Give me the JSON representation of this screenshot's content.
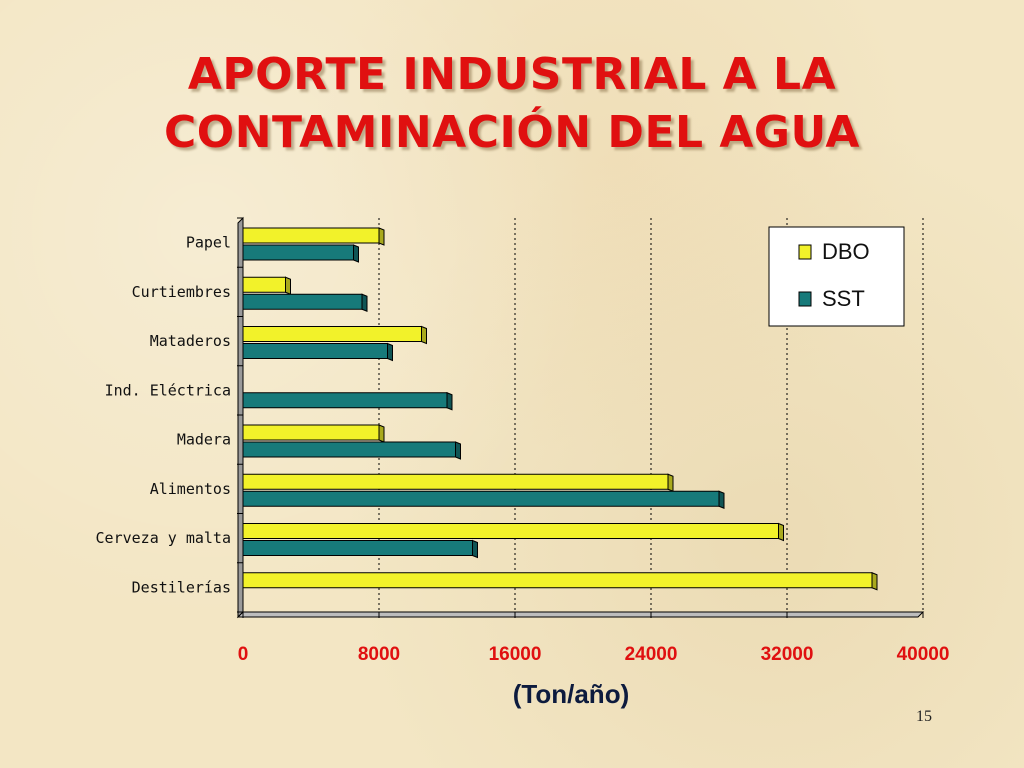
{
  "slide": {
    "title_line1": "APORTE INDUSTRIAL A LA",
    "title_line2": "CONTAMINACIÓN DEL AGUA",
    "page_number": "15"
  },
  "colors": {
    "title": "#e01010",
    "dbo": "#f2f22a",
    "sst": "#177a7a"
  },
  "chart_data": {
    "type": "bar",
    "orientation": "horizontal",
    "categories": [
      "Papel",
      "Curtiembres",
      "Mataderos",
      "Ind. Eléctrica",
      "Madera",
      "Alimentos",
      "Cerveza y malta",
      "Destilerías"
    ],
    "series": [
      {
        "name": "DBO",
        "values": [
          8000,
          2500,
          10500,
          0,
          8000,
          25000,
          31500,
          37000
        ]
      },
      {
        "name": "SST",
        "values": [
          6500,
          7000,
          8500,
          12000,
          12500,
          28000,
          13500,
          0
        ]
      }
    ],
    "xlabel": "(Ton/año)",
    "ylabel": "",
    "xlim": [
      0,
      40000
    ],
    "xticks": [
      "0",
      "8000",
      "16000",
      "24000",
      "32000",
      "40000"
    ],
    "grid": true,
    "legend": "top-right"
  }
}
